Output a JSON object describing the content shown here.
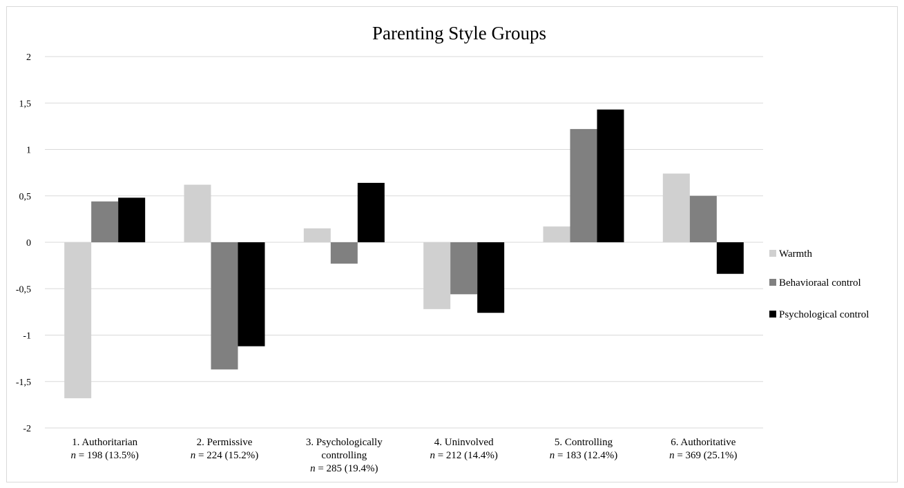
{
  "chart_data": {
    "type": "bar",
    "title": "Parenting Style Groups",
    "ylim": [
      -2,
      2
    ],
    "yticks": [
      2,
      1.5,
      1,
      0.5,
      0,
      -0.5,
      -1,
      -1.5,
      -2
    ],
    "ytick_labels": [
      "2",
      "1,5",
      "1",
      "0,5",
      "0",
      "-0,5",
      "-1",
      "-1,5",
      "-2"
    ],
    "grid": true,
    "legend_position": "right",
    "categories": [
      {
        "name": "1. Authoritarian",
        "n_label": "n",
        "n_text": " = 198 (13.5%)"
      },
      {
        "name": "2. Permissive",
        "n_label": "n",
        "n_text": " = 224 (15.2%)"
      },
      {
        "name": "3. Psychologically controlling",
        "n_label": "n",
        "n_text": " = 285 (19.4%)"
      },
      {
        "name": "4. Uninvolved",
        "n_label": "n",
        "n_text": " = 212 (14.4%)"
      },
      {
        "name": "5. Controlling",
        "n_label": "n",
        "n_text": " = 183 (12.4%)"
      },
      {
        "name": "6. Authoritative",
        "n_label": "n",
        "n_text": " = 369 (25.1%)"
      }
    ],
    "series": [
      {
        "name": "Warmth",
        "color": "#d0d0d0",
        "values": [
          -1.68,
          0.62,
          0.15,
          -0.72,
          0.17,
          0.74
        ]
      },
      {
        "name": "Behavioraal control",
        "color": "#808080",
        "values": [
          0.44,
          -1.37,
          -0.23,
          -0.56,
          1.22,
          0.5
        ]
      },
      {
        "name": "Psychological control",
        "color": "#000000",
        "values": [
          0.48,
          -1.12,
          0.64,
          -0.76,
          1.43,
          -0.34
        ]
      }
    ]
  }
}
